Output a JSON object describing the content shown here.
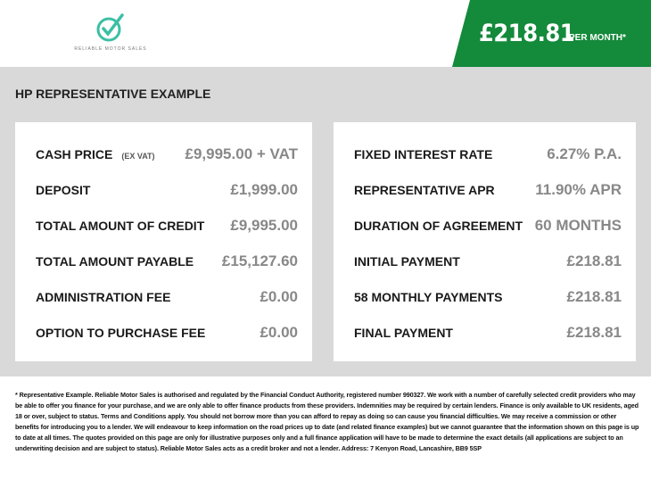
{
  "header": {
    "logo_text": "RELIABLE MOTOR SALES",
    "price": "£218.81",
    "per_month": "PER MONTH*",
    "brand_color": "#148a3b"
  },
  "title": "HP REPRESENTATIVE EXAMPLE",
  "left": [
    {
      "label": "CASH PRICE",
      "sub": "(EX VAT)",
      "value": "£9,995.00 + VAT"
    },
    {
      "label": "DEPOSIT",
      "value": "£1,999.00"
    },
    {
      "label": "TOTAL AMOUNT OF CREDIT",
      "value": "£9,995.00"
    },
    {
      "label": "TOTAL AMOUNT PAYABLE",
      "value": "£15,127.60"
    },
    {
      "label": "ADMINISTRATION FEE",
      "value": "£0.00"
    },
    {
      "label": "OPTION TO PURCHASE FEE",
      "value": "£0.00"
    }
  ],
  "right": [
    {
      "label": "FIXED INTEREST RATE",
      "value": "6.27% P.A."
    },
    {
      "label": "REPRESENTATIVE APR",
      "value": "11.90% APR"
    },
    {
      "label": "DURATION OF AGREEMENT",
      "value": "60 MONTHS"
    },
    {
      "label": "INITIAL PAYMENT",
      "value": "£218.81"
    },
    {
      "label": "58 MONTHLY PAYMENTS",
      "value": "£218.81"
    },
    {
      "label": "FINAL PAYMENT",
      "value": "£218.81"
    }
  ],
  "disclaimer": "* Representative Example. Reliable Motor Sales is authorised and regulated by the Financial Conduct Authority, registered number 990327. We work with a number of carefully selected credit providers who may be able to offer you finance for your purchase, and we are only able to offer finance products from these providers. Indemnities may be required by certain lenders. Finance is only available to UK residents, aged 18 or over, subject to status. Terms and Conditions apply. You should not borrow more than you can afford to repay as doing so can cause you financial difficulties. We may receive a commission or other benefits for introducing you to a lender. We will endeavour to keep information on the road prices up to date (and related finance examples) but we cannot guarantee that the information shown on this page is up to date at all times. The quotes provided on this page are only for illustrative purposes only and a full finance application will have to be made to determine the exact details (all applications are subject to an underwriting decision and are subject to status). Reliable Motor Sales acts as a credit broker and not a lender. Address: 7 Kenyon Road, Lancashire, BB9 5SP"
}
